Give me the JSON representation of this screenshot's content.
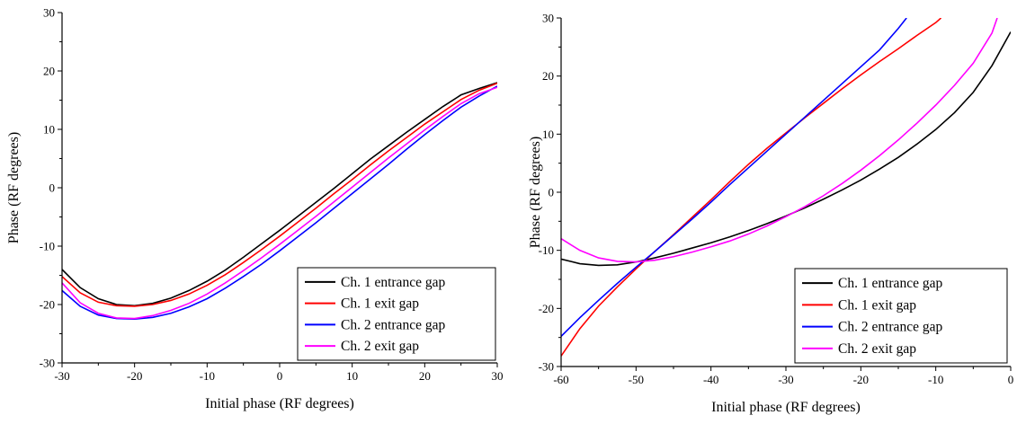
{
  "chart_data": [
    {
      "type": "line",
      "xlabel": "Initial phase (RF degrees)",
      "ylabel": "Phase (RF degrees)",
      "xlim": [
        -30,
        30
      ],
      "ylim": [
        -30,
        30
      ],
      "xticks": [
        -30,
        -20,
        -10,
        0,
        10,
        20,
        30
      ],
      "yticks": [
        -30,
        -20,
        -10,
        0,
        10,
        20,
        30
      ],
      "legend_position": "bottom-right",
      "series": [
        {
          "name": "Ch. 1 entrance gap",
          "color": "#000000",
          "x": [
            -30,
            -27.5,
            -25,
            -22.5,
            -20,
            -17.5,
            -15,
            -12.5,
            -10,
            -7.5,
            -5,
            -2.5,
            0,
            2.5,
            5,
            7.5,
            10,
            12.5,
            15,
            17.5,
            20,
            22.5,
            25,
            27.5,
            30
          ],
          "y": [
            -14.0,
            -17.1,
            -19.0,
            -20.0,
            -20.2,
            -19.8,
            -18.9,
            -17.6,
            -16.0,
            -14.1,
            -11.9,
            -9.6,
            -7.3,
            -4.9,
            -2.5,
            -0.1,
            2.4,
            4.9,
            7.2,
            9.5,
            11.7,
            13.9,
            15.9,
            17.0,
            18.0
          ]
        },
        {
          "name": "Ch. 1 exit gap",
          "color": "#ff0000",
          "x": [
            -30,
            -27.5,
            -25,
            -22.5,
            -20,
            -17.5,
            -15,
            -12.5,
            -10,
            -7.5,
            -5,
            -2.5,
            0,
            2.5,
            5,
            7.5,
            10,
            12.5,
            15,
            17.5,
            20,
            22.5,
            25,
            27.5,
            30
          ],
          "y": [
            -15.2,
            -18.0,
            -19.6,
            -20.2,
            -20.3,
            -20.0,
            -19.3,
            -18.2,
            -16.7,
            -14.9,
            -12.8,
            -10.6,
            -8.3,
            -5.9,
            -3.5,
            -1.0,
            1.4,
            3.9,
            6.3,
            8.6,
            10.9,
            13.0,
            15.1,
            16.7,
            17.9
          ]
        },
        {
          "name": "Ch. 2 entrance gap",
          "color": "#0000ff",
          "x": [
            -30,
            -27.5,
            -25,
            -22.5,
            -20,
            -17.5,
            -15,
            -12.5,
            -10,
            -7.5,
            -5,
            -2.5,
            0,
            2.5,
            5,
            7.5,
            10,
            12.5,
            15,
            17.5,
            20,
            22.5,
            25,
            27.5,
            30
          ],
          "y": [
            -17.6,
            -20.3,
            -21.8,
            -22.4,
            -22.5,
            -22.2,
            -21.5,
            -20.4,
            -19.0,
            -17.2,
            -15.2,
            -13.1,
            -10.8,
            -8.4,
            -6.0,
            -3.5,
            -1.0,
            1.5,
            4.0,
            6.6,
            9.1,
            11.5,
            13.8,
            15.7,
            17.4
          ]
        },
        {
          "name": "Ch. 2 exit gap",
          "color": "#ff00ff",
          "x": [
            -30,
            -27.5,
            -25,
            -22.5,
            -20,
            -17.5,
            -15,
            -12.5,
            -10,
            -7.5,
            -5,
            -2.5,
            0,
            2.5,
            5,
            7.5,
            10,
            12.5,
            15,
            17.5,
            20,
            22.5,
            25,
            27.5,
            30
          ],
          "y": [
            -16.3,
            -19.7,
            -21.5,
            -22.3,
            -22.4,
            -21.9,
            -21.0,
            -19.8,
            -18.2,
            -16.3,
            -14.2,
            -12.0,
            -9.7,
            -7.3,
            -4.9,
            -2.4,
            0.1,
            2.6,
            5.1,
            7.5,
            9.9,
            12.2,
            14.4,
            16.1,
            17.2
          ]
        }
      ]
    },
    {
      "type": "line",
      "xlabel": "Initial phase (RF degrees)",
      "ylabel": "Phase (RF degrees)",
      "xlim": [
        -60,
        0
      ],
      "ylim": [
        -30,
        30
      ],
      "xticks": [
        -60,
        -50,
        -40,
        -30,
        -20,
        -10,
        0
      ],
      "yticks": [
        -30,
        -20,
        -10,
        0,
        10,
        20,
        30
      ],
      "legend_position": "bottom-right",
      "series": [
        {
          "name": "Ch. 1 entrance gap",
          "color": "#000000",
          "x": [
            -60,
            -57.5,
            -55,
            -52.5,
            -50,
            -47.5,
            -45,
            -42.5,
            -40,
            -37.5,
            -35,
            -32.5,
            -30,
            -27.5,
            -25,
            -22.5,
            -20,
            -17.5,
            -15,
            -12.5,
            -10,
            -7.5,
            -5,
            -2.5,
            0
          ],
          "y": [
            -11.5,
            -12.3,
            -12.6,
            -12.5,
            -12.0,
            -11.3,
            -10.5,
            -9.6,
            -8.7,
            -7.7,
            -6.6,
            -5.4,
            -4.1,
            -2.7,
            -1.2,
            0.4,
            2.1,
            4.0,
            6.0,
            8.3,
            10.8,
            13.7,
            17.2,
            21.8,
            27.6
          ]
        },
        {
          "name": "Ch. 1 exit gap",
          "color": "#ff0000",
          "x": [
            -60,
            -57.5,
            -55,
            -52.5,
            -50,
            -47.5,
            -45,
            -42.5,
            -40,
            -37.5,
            -35,
            -32.5,
            -30,
            -27.5,
            -25,
            -22.5,
            -20,
            -17.5,
            -15,
            -12.5,
            -10,
            -9.3
          ],
          "y": [
            -28.2,
            -23.5,
            -19.6,
            -16.3,
            -13.2,
            -10.2,
            -7.3,
            -4.3,
            -1.3,
            1.8,
            4.8,
            7.6,
            10.2,
            12.8,
            15.3,
            17.8,
            20.2,
            22.5,
            24.7,
            27.0,
            29.2,
            30.0
          ]
        },
        {
          "name": "Ch. 2 entrance gap",
          "color": "#0000ff",
          "x": [
            -60,
            -57.5,
            -55,
            -52.5,
            -50,
            -47.5,
            -45,
            -42.5,
            -40,
            -37.5,
            -35,
            -32.5,
            -30,
            -27.5,
            -25,
            -22.5,
            -20,
            -17.5,
            -15,
            -13.9
          ],
          "y": [
            -24.8,
            -21.6,
            -18.6,
            -15.7,
            -12.9,
            -10.2,
            -7.4,
            -4.6,
            -1.7,
            1.3,
            4.2,
            7.1,
            10.0,
            12.9,
            15.8,
            18.7,
            21.6,
            24.5,
            28.2,
            30.0
          ]
        },
        {
          "name": "Ch. 2 exit gap",
          "color": "#ff00ff",
          "x": [
            -60,
            -57.5,
            -55,
            -52.5,
            -50,
            -47.5,
            -45,
            -42.5,
            -40,
            -37.5,
            -35,
            -32.5,
            -30,
            -27.5,
            -25,
            -22.5,
            -20,
            -17.5,
            -15,
            -12.5,
            -10,
            -7.5,
            -5,
            -2.5,
            -1.8
          ],
          "y": [
            -8.0,
            -10.0,
            -11.3,
            -11.9,
            -12.0,
            -11.7,
            -11.1,
            -10.3,
            -9.4,
            -8.4,
            -7.2,
            -5.8,
            -4.2,
            -2.5,
            -0.6,
            1.5,
            3.8,
            6.3,
            9.0,
            11.9,
            15.0,
            18.4,
            22.2,
            27.4,
            30.0
          ]
        }
      ]
    }
  ]
}
